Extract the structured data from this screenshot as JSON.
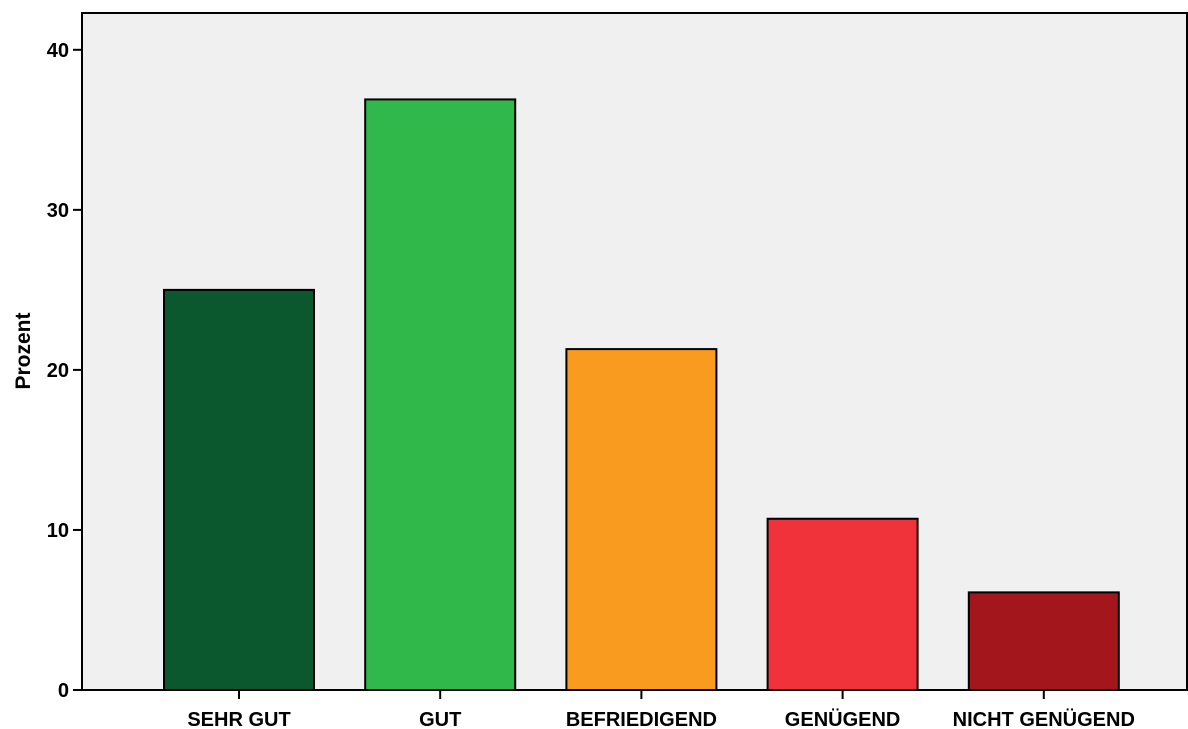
{
  "chart_data": {
    "type": "bar",
    "categories": [
      "SEHR GUT",
      "GUT",
      "BEFRIEDIGEND",
      "GENÜGEND",
      "NICHT GENÜGEND"
    ],
    "values": [
      25.0,
      36.9,
      21.3,
      10.7,
      6.1
    ],
    "colors": [
      "#0b572e",
      "#30b94a",
      "#f89b1f",
      "#f0333a",
      "#a3161c"
    ],
    "xlabel": "",
    "ylabel": "Prozent",
    "ylim": [
      0,
      42.3
    ],
    "yticks": [
      0,
      10,
      20,
      30,
      40
    ],
    "ytick_labels": [
      "0",
      "10",
      "20",
      "30",
      "40"
    ],
    "grid": false,
    "background": "#f0f0f0"
  }
}
